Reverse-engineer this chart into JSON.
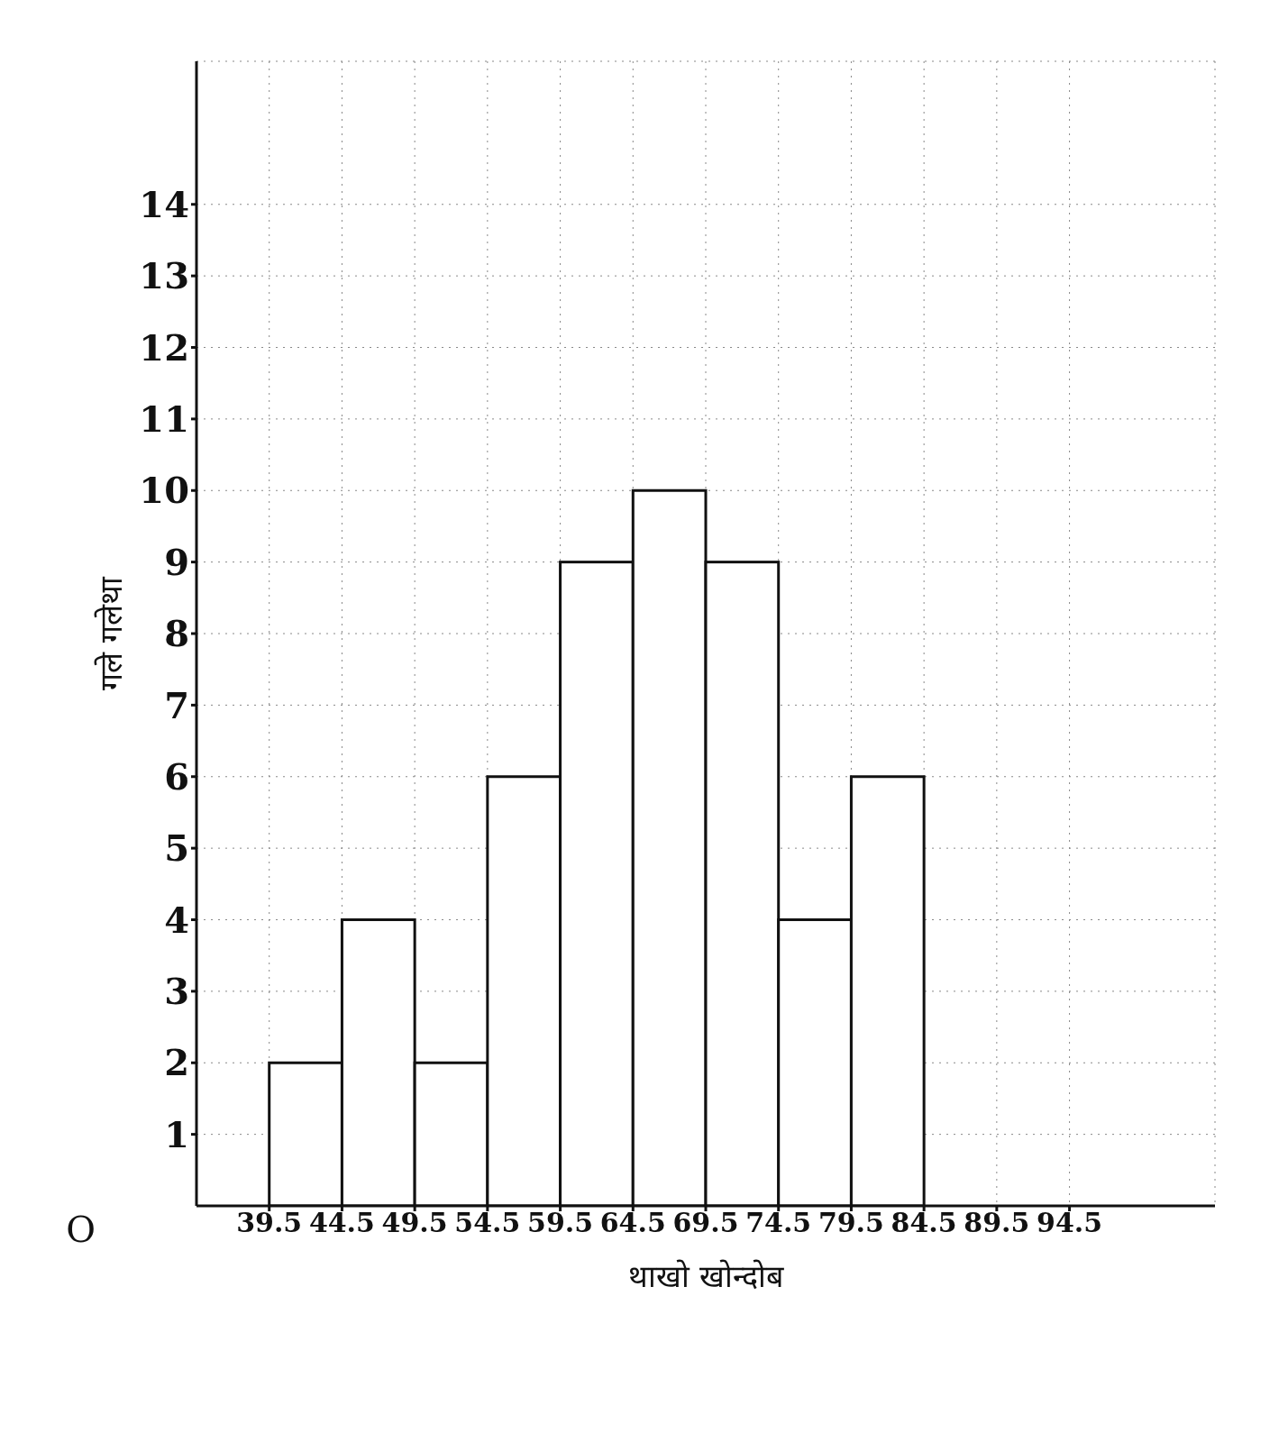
{
  "chart_data": {
    "type": "histogram",
    "xlabel": "थाखो खोन्दोब",
    "ylabel": "गले गलेथा",
    "bins": [
      39.5,
      44.5,
      49.5,
      54.5,
      59.5,
      64.5,
      69.5,
      74.5,
      79.5,
      84.5
    ],
    "values": [
      2,
      4,
      2,
      6,
      9,
      10,
      9,
      4,
      6
    ],
    "color": "#ffffff",
    "xlim": [
      34.5,
      104.5
    ],
    "xticks": [
      39.5,
      44.5,
      49.5,
      54.5,
      59.5,
      64.5,
      69.5,
      74.5,
      79.5,
      84.5,
      89.5,
      94.5
    ],
    "ylim": [
      0,
      16
    ],
    "yticks": [
      1,
      2,
      3,
      4,
      5,
      6,
      7,
      8,
      9,
      10,
      11,
      12,
      13,
      14
    ],
    "annotations": [
      "O"
    ],
    "grid": true
  }
}
